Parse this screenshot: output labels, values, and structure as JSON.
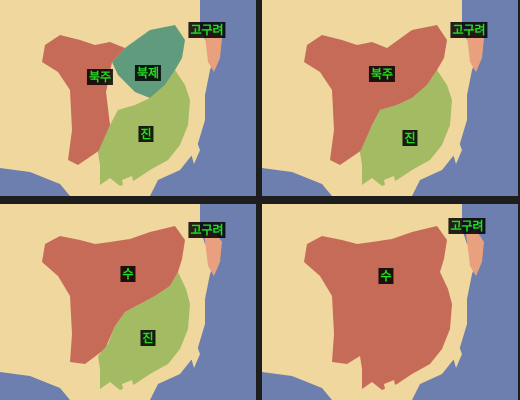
{
  "panels": [
    {
      "regions": {
        "bukju": {
          "label": "북주",
          "color": "#c76b59"
        },
        "bukje": {
          "label": "북제",
          "color": "#5f9b7c"
        },
        "jin": {
          "label": "진",
          "color": "#a3bb62"
        },
        "goguryeo": {
          "label": "고구려",
          "color": "#e8a07f"
        }
      }
    },
    {
      "regions": {
        "bukju": {
          "label": "북주",
          "color": "#c76b59"
        },
        "jin": {
          "label": "진",
          "color": "#a3bb62"
        },
        "goguryeo": {
          "label": "고구려",
          "color": "#e8a07f"
        }
      }
    },
    {
      "regions": {
        "su": {
          "label": "수",
          "color": "#c76b59"
        },
        "jin": {
          "label": "진",
          "color": "#a3bb62"
        },
        "goguryeo": {
          "label": "고구려",
          "color": "#e8a07f"
        }
      }
    },
    {
      "regions": {
        "su": {
          "label": "수",
          "color": "#c76b59"
        },
        "goguryeo": {
          "label": "고구려",
          "color": "#e8a07f"
        }
      }
    }
  ],
  "colors": {
    "land": "#efd79e",
    "sea": "#6c7fae",
    "label_text": "#20e020",
    "label_bg": "#000000"
  }
}
